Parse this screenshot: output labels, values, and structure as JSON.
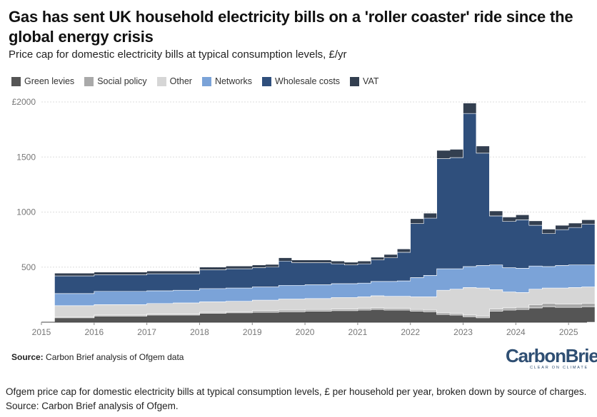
{
  "header": {
    "title": "Gas has sent UK household electricity bills on a 'roller coaster' ride since the global energy crisis",
    "subtitle": "Price cap for domestic electricity bills at typical consumption levels, £/yr"
  },
  "legend": [
    {
      "label": "Green levies",
      "color": "#555555"
    },
    {
      "label": "Social policy",
      "color": "#a9a9a9"
    },
    {
      "label": "Other",
      "color": "#d6d6d6"
    },
    {
      "label": "Networks",
      "color": "#7ba3d8"
    },
    {
      "label": "Wholesale costs",
      "color": "#2f4f7c"
    },
    {
      "label": "VAT",
      "color": "#333f50"
    }
  ],
  "footer": {
    "source_label": "Source:",
    "source_text": "Carbon Brief analysis of Ofgem data",
    "logo_name": "CarbonBrief",
    "logo_tagline": "CLEAR ON CLIMATE"
  },
  "caption": "Ofgem price cap for domestic electricity bills at typical consumption levels, £ per household per year, broken down by source of charges. Source: Carbon Brief analysis of Ofgem.",
  "chart_data": {
    "type": "area",
    "stacked": true,
    "step": true,
    "title": "Gas has sent UK household electricity bills on a 'roller coaster' ride since the global energy crisis",
    "ylabel": "£/yr",
    "ylim": [
      0,
      2000
    ],
    "yticks": [
      0,
      500,
      1000,
      1500,
      2000
    ],
    "ytick_labels": [
      "",
      "500",
      "1000",
      "1500",
      "£2000"
    ],
    "xlim": [
      2015,
      2025.35
    ],
    "xticks": [
      2015,
      2016,
      2017,
      2018,
      2019,
      2020,
      2021,
      2022,
      2023,
      2024,
      2025
    ],
    "grid": true,
    "x": [
      2015.25,
      2015.5,
      2016.0,
      2016.5,
      2017.0,
      2017.5,
      2018.0,
      2018.5,
      2019.0,
      2019.25,
      2019.5,
      2019.75,
      2020.0,
      2020.25,
      2020.5,
      2020.75,
      2021.0,
      2021.25,
      2021.5,
      2021.75,
      2022.0,
      2022.25,
      2022.5,
      2022.75,
      2023.0,
      2023.25,
      2023.5,
      2023.75,
      2024.0,
      2024.25,
      2024.5,
      2024.75,
      2025.0,
      2025.25
    ],
    "x_end": 2025.5,
    "series": [
      {
        "name": "Green levies",
        "values": [
          40,
          40,
          55,
          55,
          65,
          65,
          80,
          85,
          90,
          90,
          95,
          95,
          100,
          100,
          105,
          105,
          110,
          115,
          110,
          110,
          100,
          95,
          70,
          65,
          50,
          40,
          100,
          110,
          115,
          130,
          140,
          135,
          135,
          140
        ]
      },
      {
        "name": "Social policy",
        "values": [
          10,
          10,
          10,
          10,
          10,
          10,
          10,
          10,
          15,
          15,
          15,
          15,
          15,
          15,
          15,
          15,
          15,
          15,
          15,
          15,
          15,
          15,
          15,
          15,
          15,
          15,
          20,
          20,
          20,
          30,
          30,
          30,
          30,
          30
        ]
      },
      {
        "name": "Other",
        "values": [
          100,
          100,
          95,
          95,
          95,
          100,
          95,
          95,
          95,
          95,
          100,
          100,
          100,
          100,
          105,
          105,
          105,
          110,
          110,
          110,
          115,
          120,
          205,
          220,
          250,
          255,
          175,
          145,
          135,
          140,
          140,
          145,
          150,
          150
        ]
      },
      {
        "name": "Networks",
        "values": [
          110,
          110,
          120,
          120,
          115,
          115,
          120,
          120,
          120,
          120,
          125,
          125,
          125,
          125,
          125,
          125,
          125,
          130,
          135,
          140,
          175,
          195,
          195,
          185,
          190,
          205,
          225,
          220,
          220,
          210,
          195,
          205,
          205,
          200
        ]
      },
      {
        "name": "Wholesale costs",
        "values": [
          160,
          160,
          150,
          150,
          155,
          150,
          170,
          175,
          175,
          180,
          220,
          205,
          200,
          200,
          180,
          170,
          175,
          195,
          215,
          260,
          490,
          520,
          1000,
          1010,
          1390,
          1020,
          445,
          420,
          440,
          370,
          300,
          325,
          340,
          370
        ]
      },
      {
        "name": "VAT",
        "values": [
          25,
          25,
          25,
          25,
          25,
          25,
          25,
          25,
          25,
          25,
          30,
          25,
          25,
          25,
          25,
          25,
          25,
          25,
          30,
          30,
          45,
          45,
          75,
          75,
          95,
          65,
          45,
          40,
          45,
          40,
          40,
          40,
          40,
          40
        ]
      }
    ]
  }
}
